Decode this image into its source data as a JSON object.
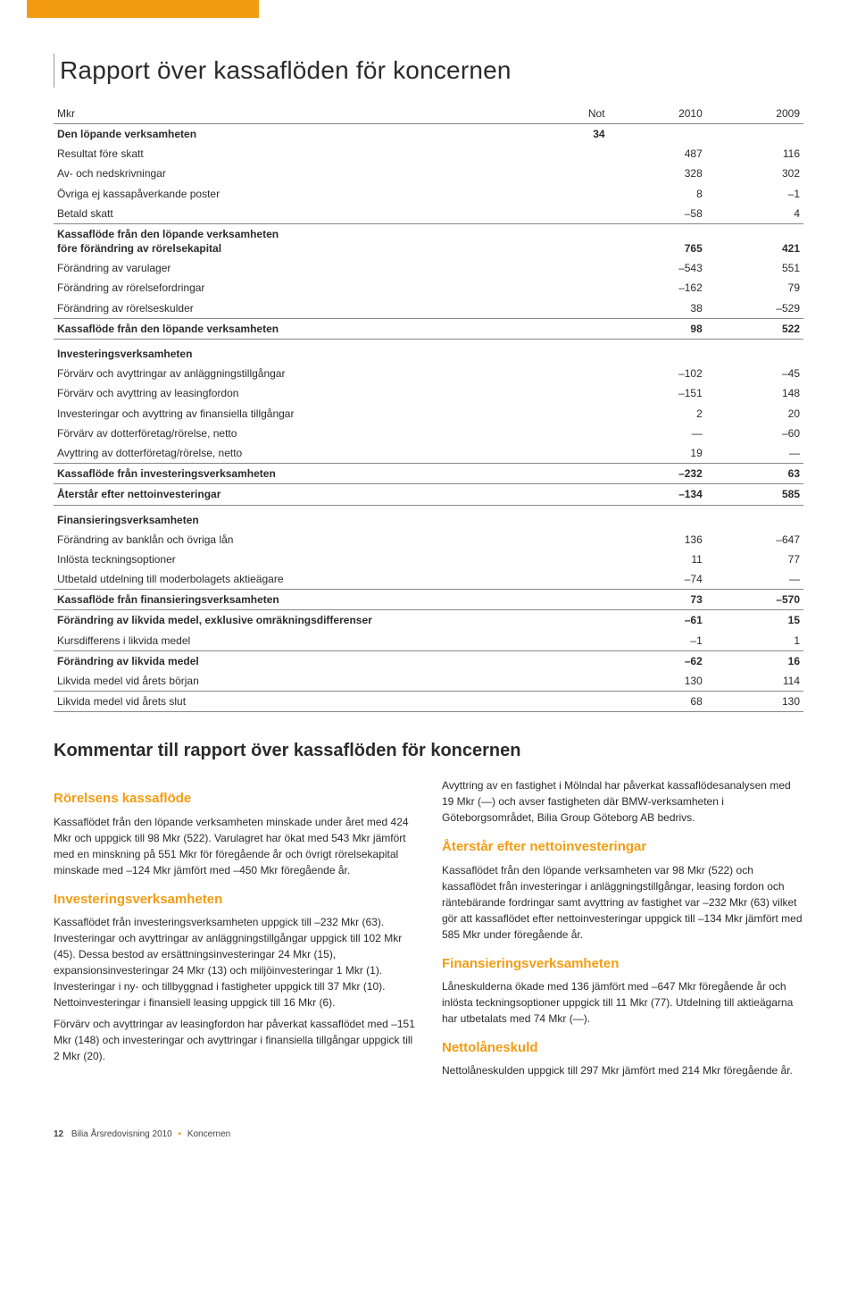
{
  "header_bar_color": "#f39c12",
  "title": "Rapport över kassaflöden för koncernen",
  "table": {
    "columns": [
      "Mkr",
      "Not",
      "2010",
      "2009"
    ],
    "rows": [
      {
        "label": "Den löpande verksamheten",
        "not": "34",
        "v2010": "",
        "v2009": "",
        "bold": true,
        "sep": false
      },
      {
        "label": "Resultat före skatt",
        "not": "",
        "v2010": "487",
        "v2009": "116",
        "bold": false,
        "sep": false
      },
      {
        "label": "Av- och nedskrivningar",
        "not": "",
        "v2010": "328",
        "v2009": "302",
        "bold": false,
        "sep": false
      },
      {
        "label": "Övriga ej kassapåverkande poster",
        "not": "",
        "v2010": "8",
        "v2009": "–1",
        "bold": false,
        "sep": false
      },
      {
        "label": "Betald skatt",
        "not": "",
        "v2010": "–58",
        "v2009": "4",
        "bold": false,
        "sep": true
      },
      {
        "label": "Kassaflöde från den löpande verksamheten\nföre förändring av rörelsekapital",
        "not": "",
        "v2010": "765",
        "v2009": "421",
        "bold": true,
        "sep": false,
        "multiline": true
      },
      {
        "label": "Förändring av varulager",
        "not": "",
        "v2010": "–543",
        "v2009": "551",
        "bold": false,
        "sep": false
      },
      {
        "label": "Förändring av rörelsefordringar",
        "not": "",
        "v2010": "–162",
        "v2009": "79",
        "bold": false,
        "sep": false
      },
      {
        "label": "Förändring av rörelseskulder",
        "not": "",
        "v2010": "38",
        "v2009": "–529",
        "bold": false,
        "sep": true
      },
      {
        "label": "Kassaflöde från den löpande verksamheten",
        "not": "",
        "v2010": "98",
        "v2009": "522",
        "bold": true,
        "sep": true
      },
      {
        "label": "Investeringsverksamheten",
        "not": "",
        "v2010": "",
        "v2009": "",
        "bold": true,
        "sep": false,
        "section": true
      },
      {
        "label": "Förvärv och avyttringar av anläggningstillgångar",
        "not": "",
        "v2010": "–102",
        "v2009": "–45",
        "bold": false,
        "sep": false
      },
      {
        "label": "Förvärv och avyttring av leasingfordon",
        "not": "",
        "v2010": "–151",
        "v2009": "148",
        "bold": false,
        "sep": false
      },
      {
        "label": "Investeringar och avyttring av finansiella tillgångar",
        "not": "",
        "v2010": "2",
        "v2009": "20",
        "bold": false,
        "sep": false
      },
      {
        "label": "Förvärv av dotterföretag/rörelse, netto",
        "not": "",
        "v2010": "—",
        "v2009": "–60",
        "bold": false,
        "sep": false
      },
      {
        "label": "Avyttring av dotterföretag/rörelse, netto",
        "not": "",
        "v2010": "19",
        "v2009": "—",
        "bold": false,
        "sep": true
      },
      {
        "label": "Kassaflöde från investeringsverksamheten",
        "not": "",
        "v2010": "–232",
        "v2009": "63",
        "bold": true,
        "sep": true
      },
      {
        "label": "Återstår efter nettoinvesteringar",
        "not": "",
        "v2010": "–134",
        "v2009": "585",
        "bold": true,
        "sep": true
      },
      {
        "label": "Finansieringsverksamheten",
        "not": "",
        "v2010": "",
        "v2009": "",
        "bold": true,
        "sep": false,
        "section": true
      },
      {
        "label": "Förändring av banklån och övriga lån",
        "not": "",
        "v2010": "136",
        "v2009": "–647",
        "bold": false,
        "sep": false
      },
      {
        "label": "Inlösta teckningsoptioner",
        "not": "",
        "v2010": "11",
        "v2009": "77",
        "bold": false,
        "sep": false
      },
      {
        "label": "Utbetald utdelning till moderbolagets aktieägare",
        "not": "",
        "v2010": "–74",
        "v2009": "—",
        "bold": false,
        "sep": true
      },
      {
        "label": "Kassaflöde från finansieringsverksamheten",
        "not": "",
        "v2010": "73",
        "v2009": "–570",
        "bold": true,
        "sep": true
      },
      {
        "label": "Förändring av likvida medel, exklusive omräkningsdifferenser",
        "not": "",
        "v2010": "–61",
        "v2009": "15",
        "bold": true,
        "sep": false
      },
      {
        "label": "Kursdifferens i likvida medel",
        "not": "",
        "v2010": "–1",
        "v2009": "1",
        "bold": false,
        "sep": true
      },
      {
        "label": "Förändring av likvida medel",
        "not": "",
        "v2010": "–62",
        "v2009": "16",
        "bold": true,
        "sep": false
      },
      {
        "label": "Likvida medel vid årets början",
        "not": "",
        "v2010": "130",
        "v2009": "114",
        "bold": false,
        "sep": true
      },
      {
        "label": "Likvida medel vid årets slut",
        "not": "",
        "v2010": "68",
        "v2009": "130",
        "bold": false,
        "sep": true
      }
    ]
  },
  "commentary_title": "Kommentar till rapport över kassaflöden för koncernen",
  "left_sections": [
    {
      "heading": "Rörelsens kassaflöde",
      "paragraphs": [
        "Kassaflödet från den löpande verksamheten minskade under året med 424 Mkr och uppgick till 98 Mkr (522). Varulagret har ökat med 543 Mkr jämfört med en minskning på 551 Mkr för föregående år och övrigt rörelsekapital minskade med –124 Mkr jämfört med –450 Mkr föregående år."
      ]
    },
    {
      "heading": "Investeringsverksamheten",
      "paragraphs": [
        "Kassaflödet från investeringsverksamheten uppgick till –232 Mkr (63). Investeringar och avyttringar av anläggningstillgångar uppgick till 102 Mkr (45). Dessa bestod av ersättningsinvesteringar 24 Mkr (15), expansionsinvesteringar 24 Mkr (13) och miljöinvesteringar 1 Mkr (1). Investeringar i ny- och tillbyggnad i fastigheter uppgick till 37 Mkr (10). Nettoinvesteringar i finansiell leasing uppgick till 16 Mkr (6).",
        "Förvärv och avyttringar av leasingfordon har påverkat kassaflödet med –151 Mkr (148) och investeringar och avyttringar i finansiella tillgångar uppgick till 2 Mkr (20)."
      ]
    }
  ],
  "right_sections": [
    {
      "heading": "",
      "paragraphs": [
        "Avyttring av en fastighet i Mölndal har påverkat kassaflödesanalysen med 19 Mkr (—) och avser fastigheten där BMW-verksamheten i Göteborgsområdet, Bilia Group Göteborg AB bedrivs."
      ]
    },
    {
      "heading": "Återstår efter nettoinvesteringar",
      "paragraphs": [
        "Kassaflödet från den löpande verksamheten var 98 Mkr (522) och kassaflödet från investeringar i anläggningstillgångar, leasing fordon och räntebärande fordringar samt avyttring av fastighet var –232 Mkr (63) vilket gör att kassaflödet efter nettoinvesteringar uppgick till –134 Mkr jämfört med 585 Mkr under föregående år."
      ]
    },
    {
      "heading": "Finansieringsverksamheten",
      "paragraphs": [
        "Låneskulderna ökade med 136 jämfört med –647 Mkr föregående år och inlösta teckningsoptioner uppgick till 11 Mkr (77). Utdelning till aktieägarna har utbetalats med 74 Mkr (—)."
      ]
    },
    {
      "heading": "Nettolåneskuld",
      "paragraphs": [
        "Nettolåneskulden uppgick till 297 Mkr jämfört med 214 Mkr föregående år."
      ]
    }
  ],
  "footer": {
    "page_number": "12",
    "text_a": "Bilia Årsredovisning 2010",
    "text_b": "Koncernen"
  }
}
